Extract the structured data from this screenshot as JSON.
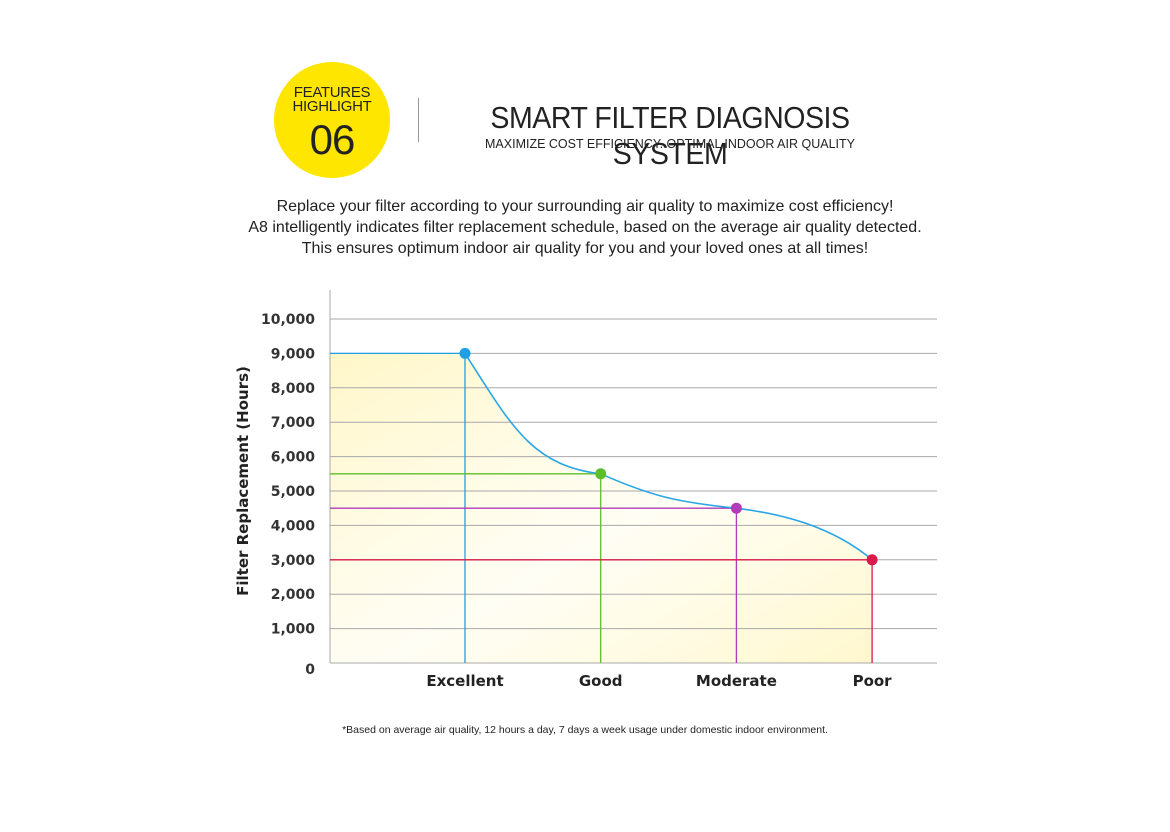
{
  "badge": {
    "line1": "FEATURES",
    "line2": "HIGHLIGHT",
    "number": "06",
    "color": "#FFE600"
  },
  "header": {
    "title": "SMART FILTER DIAGNOSIS SYSTEM",
    "subtitle": "MAXIMIZE COST EFFICIENCY. OPTIMAL INDOOR AIR QUALITY"
  },
  "intro": {
    "lines": [
      "Replace your filter according to your surrounding air quality to maximize cost efficiency!",
      "A8 intelligently indicates filter replacement schedule, based on the average air quality detected.",
      "This ensures optimum indoor air quality for you and your loved ones at all times!"
    ]
  },
  "chart_data": {
    "type": "line",
    "ylabel": "Filter Replacement (Hours)",
    "xlabel": "",
    "categories": [
      "Excellent",
      "Good",
      "Moderate",
      "Poor"
    ],
    "values": [
      9000,
      5500,
      4500,
      3000
    ],
    "ylim": [
      0,
      10500
    ],
    "yticks": [
      0,
      1000,
      2000,
      3000,
      4000,
      5000,
      6000,
      7000,
      8000,
      9000,
      10000
    ],
    "ytick_labels": [
      "0",
      "1,000",
      "2,000",
      "3,000",
      "4,000",
      "5,000",
      "6,000",
      "7,000",
      "8,000",
      "9,000",
      "10,000"
    ],
    "grid": true,
    "point_colors": [
      "#1E9FE8",
      "#5CBF2A",
      "#B13CB8",
      "#D81B4A"
    ],
    "curve_color": "#2AA6E8",
    "fill": "yellow gradient under curve"
  },
  "footnote": "*Based on average air quality, 12 hours a day, 7 days a week usage under domestic indoor environment."
}
